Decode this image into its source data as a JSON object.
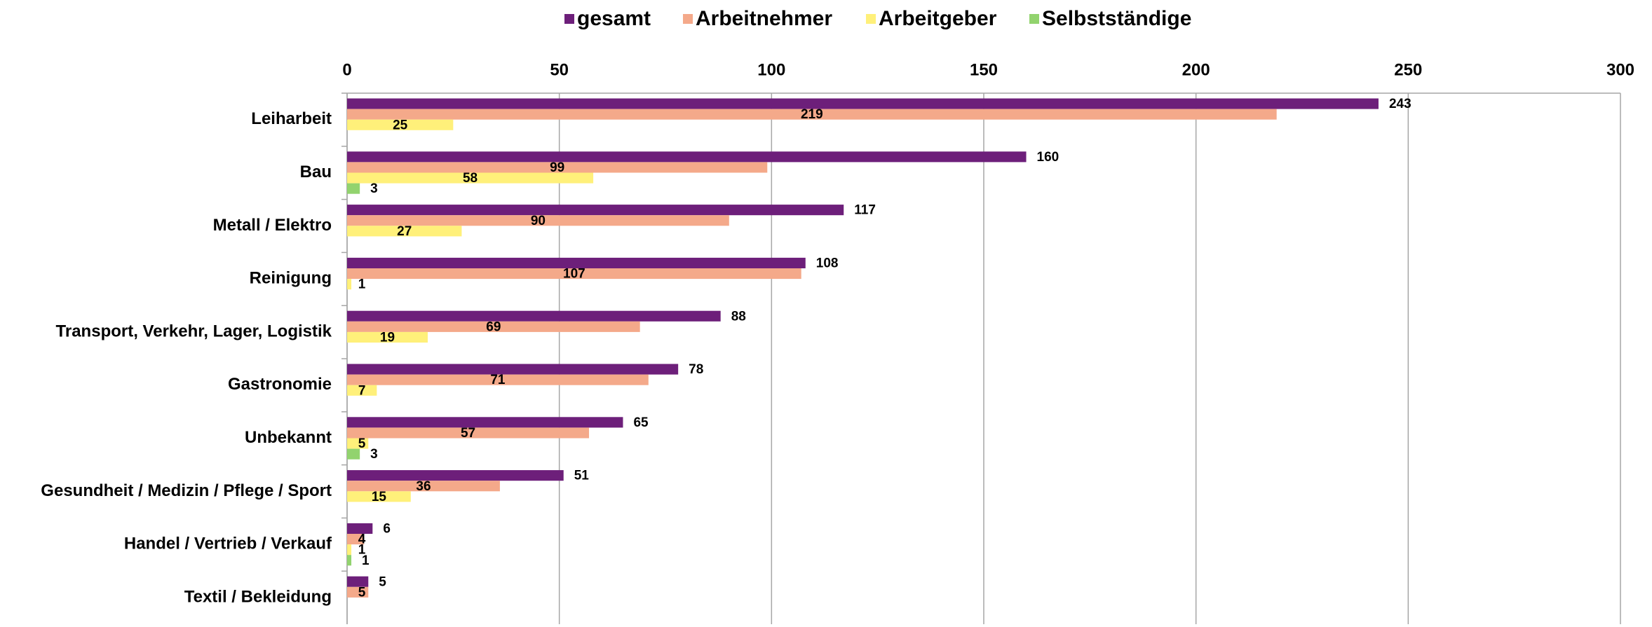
{
  "chart_data": {
    "type": "bar",
    "orientation": "horizontal",
    "categories": [
      "Leiharbeit",
      "Bau",
      "Metall / Elektro",
      "Reinigung",
      "Transport, Verkehr, Lager, Logistik",
      "Gastronomie",
      "Unbekannt",
      "Gesundheit / Medizin / Pflege / Sport",
      "Handel / Vertrieb / Verkauf",
      "Textil / Bekleidung"
    ],
    "series": [
      {
        "name": "gesamt",
        "color": "#6d1f7a",
        "values": [
          243,
          160,
          117,
          108,
          88,
          78,
          65,
          51,
          6,
          5
        ]
      },
      {
        "name": "Arbeitnehmer",
        "color": "#f4a98a",
        "values": [
          219,
          99,
          90,
          107,
          69,
          71,
          57,
          36,
          4,
          5
        ]
      },
      {
        "name": "Arbeitgeber",
        "color": "#fff07a",
        "values": [
          25,
          58,
          27,
          1,
          19,
          7,
          5,
          15,
          1,
          null
        ]
      },
      {
        "name": "Selbstständige",
        "color": "#92d36e",
        "values": [
          null,
          3,
          null,
          null,
          null,
          null,
          3,
          null,
          1,
          null
        ]
      }
    ],
    "xlim": [
      0,
      300
    ],
    "xticks": [
      0,
      50,
      100,
      150,
      200,
      250,
      300
    ],
    "grid": true,
    "legend": "top"
  }
}
